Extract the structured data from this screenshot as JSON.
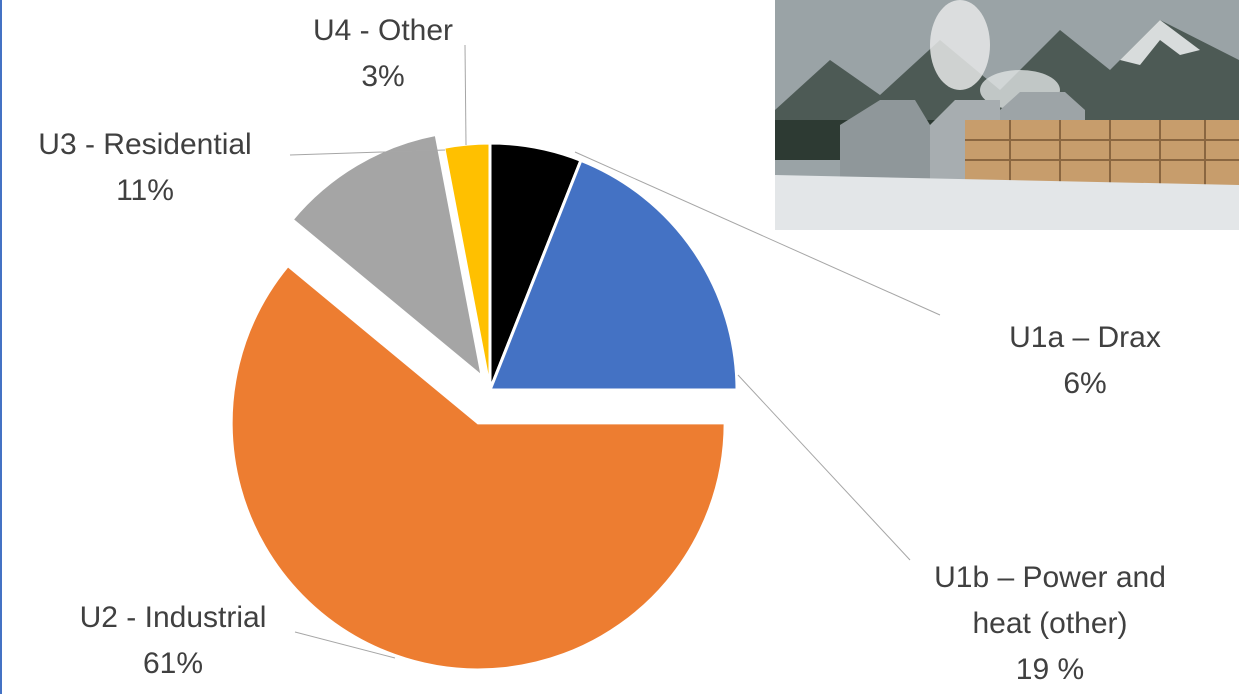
{
  "chart_data": {
    "type": "pie",
    "categories": [
      "U1a – Drax",
      "U1b – Power and heat (other)",
      "U2 - Industrial",
      "U3 - Residential",
      "U4 - Other"
    ],
    "values": [
      6,
      19,
      61,
      11,
      3
    ],
    "value_labels": [
      "6%",
      "19 %",
      "61%",
      "11%",
      "3%"
    ],
    "colors": [
      "#000000",
      "#4472c4",
      "#ed7d31",
      "#a5a5a5",
      "#ffc000"
    ]
  }
}
